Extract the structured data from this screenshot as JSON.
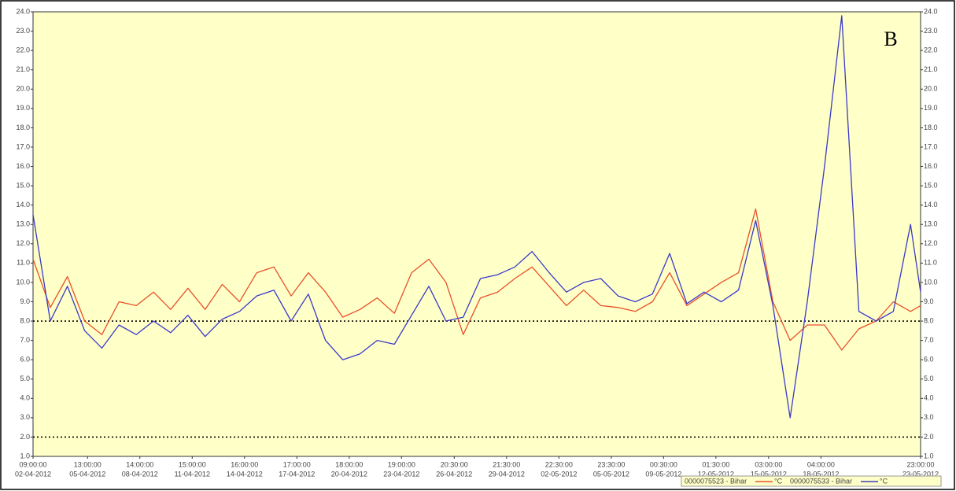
{
  "chart_data": {
    "type": "line",
    "annotation": "B",
    "unit": "°C",
    "background": "#ffffc8",
    "x": [
      "02-04-2012 09:00:00",
      "03-04-2012 09:00:00",
      "04-04-2012 09:00:00",
      "05-04-2012 09:00:00",
      "06-04-2012 09:00:00",
      "07-04-2012 09:00:00",
      "08-04-2012 09:00:00",
      "09-04-2012 09:00:00",
      "10-04-2012 09:00:00",
      "11-04-2012 09:00:00",
      "12-04-2012 09:00:00",
      "13-04-2012 09:00:00",
      "14-04-2012 09:00:00",
      "15-04-2012 09:00:00",
      "16-04-2012 09:00:00",
      "17-04-2012 09:00:00",
      "18-04-2012 09:00:00",
      "19-04-2012 09:00:00",
      "20-04-2012 09:00:00",
      "21-04-2012 09:00:00",
      "22-04-2012 09:00:00",
      "23-04-2012 09:00:00",
      "24-04-2012 09:00:00",
      "25-04-2012 09:00:00",
      "26-04-2012 09:00:00",
      "27-04-2012 09:00:00",
      "28-04-2012 09:00:00",
      "29-04-2012 09:00:00",
      "30-04-2012 09:00:00",
      "01-05-2012 09:00:00",
      "02-05-2012 09:00:00",
      "03-05-2012 09:00:00",
      "04-05-2012 09:00:00",
      "05-05-2012 09:00:00",
      "06-05-2012 09:00:00",
      "07-05-2012 09:00:00",
      "08-05-2012 09:00:00",
      "09-05-2012 09:00:00",
      "10-05-2012 09:00:00",
      "11-05-2012 09:00:00",
      "12-05-2012 09:00:00",
      "13-05-2012 09:00:00",
      "14-05-2012 09:00:00",
      "15-05-2012 09:00:00",
      "16-05-2012 09:00:00",
      "17-05-2012 09:00:00",
      "18-05-2012 09:00:00",
      "19-05-2012 09:00:00",
      "20-05-2012 09:00:00",
      "21-05-2012 09:00:00",
      "22-05-2012 09:00:00",
      "23-05-2012 09:00:00",
      "23-05-2012 23:00:00"
    ],
    "series": [
      {
        "name": "0000075523 - Bihar",
        "color": "#e8502a",
        "values": [
          11.2,
          8.7,
          10.3,
          8.0,
          7.3,
          9.0,
          8.8,
          9.5,
          8.6,
          9.7,
          8.6,
          9.9,
          9.0,
          10.5,
          10.8,
          9.3,
          10.5,
          9.5,
          8.2,
          8.6,
          9.2,
          8.4,
          10.5,
          11.2,
          10.0,
          7.3,
          9.2,
          9.5,
          10.2,
          10.8,
          9.8,
          8.8,
          9.6,
          8.8,
          8.7,
          8.5,
          9.0,
          10.5,
          8.8,
          9.4,
          10.0,
          10.5,
          13.8,
          9.0,
          7.0,
          7.8,
          7.8,
          6.5,
          7.6,
          8.0,
          9.0,
          8.5,
          8.8
        ]
      },
      {
        "name": "0000075533 - Bihar",
        "color": "#3a3ac8",
        "values": [
          13.5,
          8.0,
          9.8,
          7.5,
          6.6,
          7.8,
          7.3,
          8.0,
          7.4,
          8.3,
          7.2,
          8.1,
          8.5,
          9.3,
          9.6,
          8.0,
          9.4,
          7.0,
          6.0,
          6.3,
          7.0,
          6.8,
          8.3,
          9.8,
          8.0,
          8.2,
          10.2,
          10.4,
          10.8,
          11.6,
          10.5,
          9.5,
          10.0,
          10.2,
          9.3,
          9.0,
          9.4,
          11.5,
          8.9,
          9.5,
          9.0,
          9.6,
          13.2,
          8.8,
          3.0,
          9.0,
          16.0,
          23.8,
          8.5,
          8.0,
          8.5,
          13.0,
          9.5
        ]
      }
    ],
    "ylim": [
      1,
      24
    ],
    "yticks": [
      {
        "value": 1,
        "label": "1.0"
      },
      {
        "value": 2,
        "label": "2.0"
      },
      {
        "value": 3,
        "label": "3.0"
      },
      {
        "value": 4,
        "label": "4.0"
      },
      {
        "value": 5,
        "label": "5.0"
      },
      {
        "value": 6,
        "label": "6.0"
      },
      {
        "value": 7,
        "label": "7.0"
      },
      {
        "value": 8,
        "label": "8.0"
      },
      {
        "value": 9,
        "label": "9.0"
      },
      {
        "value": 10,
        "label": "10.0"
      },
      {
        "value": 11,
        "label": "11.0"
      },
      {
        "value": 12,
        "label": "12.0"
      },
      {
        "value": 13,
        "label": "13.0"
      },
      {
        "value": 14,
        "label": "14.0"
      },
      {
        "value": 15,
        "label": "15.0"
      },
      {
        "value": 16,
        "label": "16.0"
      },
      {
        "value": 17,
        "label": "17.0"
      },
      {
        "value": 18,
        "label": "18.0"
      },
      {
        "value": 19,
        "label": "19.0"
      },
      {
        "value": 20,
        "label": "20.0"
      },
      {
        "value": 21,
        "label": "21.0"
      },
      {
        "value": 22,
        "label": "22.0"
      },
      {
        "value": 23,
        "label": "23.0"
      },
      {
        "value": 24,
        "label": "24.0"
      }
    ],
    "xticks": [
      {
        "value": "02-04-2012 09:00:00",
        "label": [
          "09:00:00",
          "02-04-2012"
        ]
      },
      {
        "value": "05-04-2012 13:00:00",
        "label": [
          "13:00:00",
          "05-04-2012"
        ]
      },
      {
        "value": "08-04-2012 14:00:00",
        "label": [
          "14:00:00",
          "08-04-2012"
        ]
      },
      {
        "value": "11-04-2012 15:00:00",
        "label": [
          "15:00:00",
          "11-04-2012"
        ]
      },
      {
        "value": "14-04-2012 16:00:00",
        "label": [
          "16:00:00",
          "14-04-2012"
        ]
      },
      {
        "value": "17-04-2012 17:00:00",
        "label": [
          "17:00:00",
          "17-04-2012"
        ]
      },
      {
        "value": "20-04-2012 18:00:00",
        "label": [
          "18:00:00",
          "20-04-2012"
        ]
      },
      {
        "value": "23-04-2012 19:00:00",
        "label": [
          "19:00:00",
          "23-04-2012"
        ]
      },
      {
        "value": "26-04-2012 20:30:00",
        "label": [
          "20:30:00",
          "26-04-2012"
        ]
      },
      {
        "value": "29-04-2012 21:30:00",
        "label": [
          "21:30:00",
          "29-04-2012"
        ]
      },
      {
        "value": "02-05-2012 22:30:00",
        "label": [
          "22:30:00",
          "02-05-2012"
        ]
      },
      {
        "value": "05-05-2012 23:30:00",
        "label": [
          "23:30:00",
          "05-05-2012"
        ]
      },
      {
        "value": "09-05-2012 00:30:00",
        "label": [
          "00:30:00",
          "09-05-2012"
        ]
      },
      {
        "value": "12-05-2012 01:30:00",
        "label": [
          "01:30:00",
          "12-05-2012"
        ]
      },
      {
        "value": "15-05-2012 03:00:00",
        "label": [
          "03:00:00",
          "15-05-2012"
        ]
      },
      {
        "value": "18-05-2012 04:00:00",
        "label": [
          "04:00:00",
          "18-05-2012"
        ]
      },
      {
        "value": "23-05-2012 23:00:00",
        "label": [
          "23:00:00",
          "23-05-2012"
        ]
      }
    ],
    "reference_lines": [
      8,
      2
    ]
  }
}
